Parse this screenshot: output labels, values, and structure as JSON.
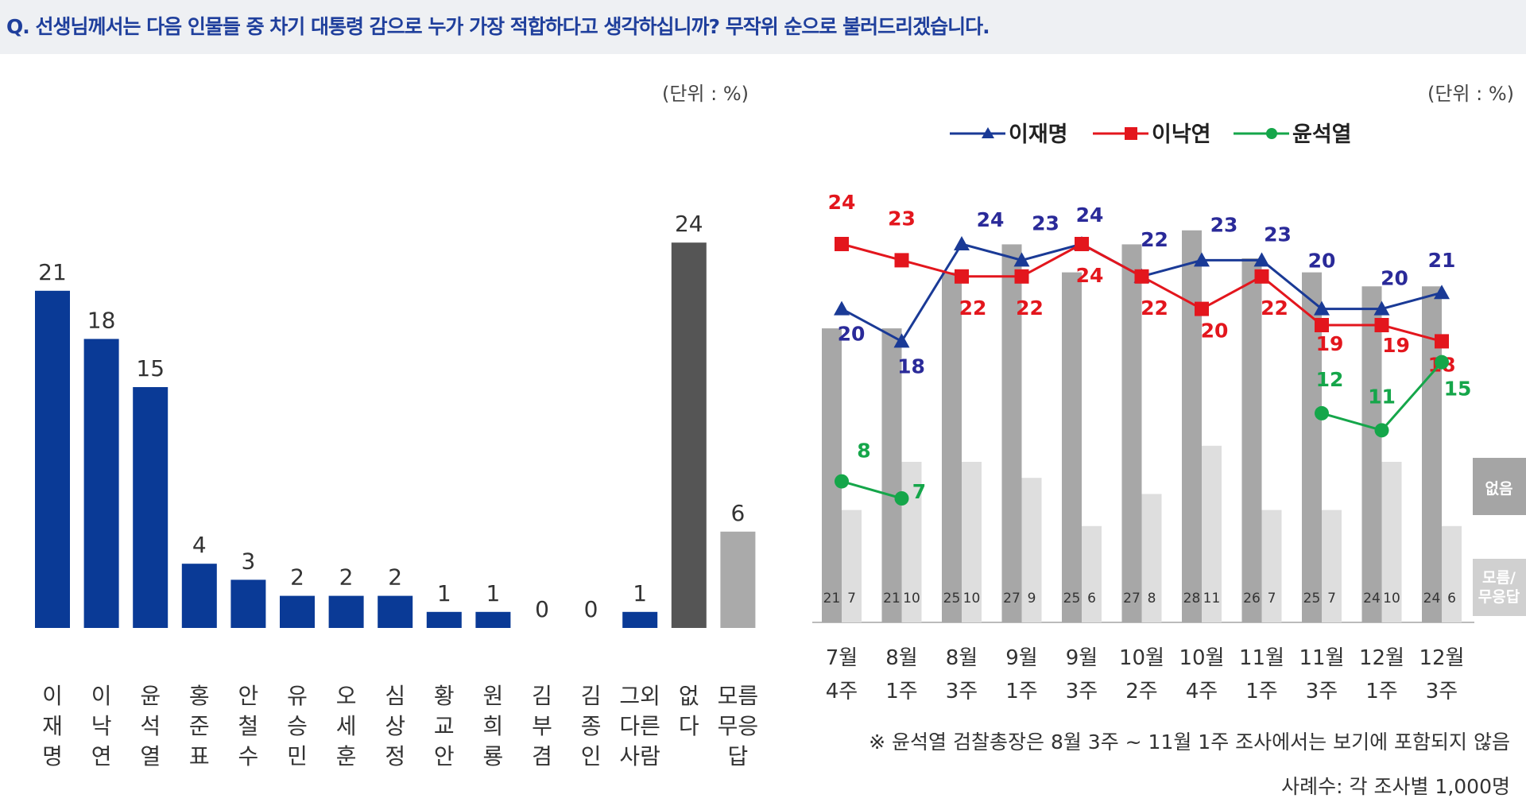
{
  "header": {
    "question": "Q. 선생님께서는 다음 인물들 중 차기 대통령 감으로 누가 가장 적합하다고 생각하십니까? 무작위 순으로 불러드리겠습니다."
  },
  "colors": {
    "blue_bar": "#0a3a96",
    "dark_bar": "#555555",
    "light_bar": "#aaaaaa",
    "gray_bar": "#a7a7a7",
    "lightgray_bar": "#dedede",
    "line_lee_jm": "#1a3a96",
    "line_lee_ny": "#e3161d",
    "line_yoon": "#15a64a",
    "label_lee_jm": "#2a2a99"
  },
  "chart_data": [
    {
      "type": "bar",
      "unit_label": "(단위 : %)",
      "categories": [
        "이\n재\n명",
        "이\n낙\n연",
        "윤\n석\n열",
        "홍\n준\n표",
        "안\n철\n수",
        "유\n승\n민",
        "오\n세\n훈",
        "심\n상\n정",
        "황\n교\n안",
        "원\n희\n룡",
        "김\n부\n겸",
        "김\n종\n인",
        "그외\n다른\n사람",
        "없\n다",
        "모름\n무응\n답"
      ],
      "values": [
        21,
        18,
        15,
        4,
        3,
        2,
        2,
        2,
        1,
        1,
        0,
        0,
        1,
        24,
        6
      ],
      "value_labels": [
        "21",
        "18",
        "15",
        "4",
        "3",
        "2",
        "2",
        "2",
        "1",
        "1",
        "0",
        "0",
        "1",
        "24",
        "6"
      ],
      "ylim": [
        0,
        28
      ]
    },
    {
      "type": "line",
      "unit_label": "(단위 : %)",
      "x": [
        "7월\n4주",
        "8월\n1주",
        "8월\n3주",
        "9월\n1주",
        "9월\n3주",
        "10월\n2주",
        "10월\n4주",
        "11월\n1주",
        "11월\n3주",
        "12월\n1주",
        "12월\n3주"
      ],
      "series": [
        {
          "name": "이재명",
          "values": [
            20,
            18,
            24,
            23,
            24,
            22,
            23,
            23,
            20,
            20,
            21
          ],
          "labels": [
            "20",
            "18",
            "24",
            "23",
            "24",
            "22",
            "23",
            "23",
            "20",
            "20",
            "21"
          ]
        },
        {
          "name": "이낙연",
          "values": [
            24,
            23,
            22,
            22,
            24,
            22,
            20,
            22,
            19,
            19,
            18
          ],
          "labels": [
            "24",
            "23",
            "22",
            "22",
            "24",
            "22",
            "20",
            "22",
            "19",
            "19",
            "18"
          ]
        },
        {
          "name": "윤석열",
          "values": [
            8,
            7,
            null,
            null,
            null,
            null,
            null,
            null,
            12,
            11,
            15
          ],
          "labels": [
            "8",
            "7",
            "",
            "",
            "",
            "",
            "",
            "",
            "12",
            "11",
            "15"
          ]
        }
      ],
      "bars": [
        {
          "name": "없음",
          "values": [
            21,
            21,
            25,
            27,
            25,
            27,
            28,
            26,
            25,
            24,
            24
          ],
          "labels": [
            "21",
            "21",
            "25",
            "27",
            "25",
            "27",
            "28",
            "26",
            "25",
            "24",
            "24"
          ]
        },
        {
          "name": "모름/무응답",
          "values": [
            7,
            10,
            10,
            9,
            6,
            8,
            11,
            7,
            7,
            10,
            6
          ],
          "labels": [
            "7",
            "10",
            "10",
            "9",
            "6",
            "8",
            "11",
            "7",
            "7",
            "10",
            "6"
          ]
        }
      ],
      "side_labels": [
        "없음",
        "모름/\n무응답"
      ],
      "note": "※ 윤석열 검찰총장은 8월 3주 ~ 11월 1주 조사에서는 보기에 포함되지 않음",
      "sample": "사례수: 각 조사별 1,000명"
    }
  ]
}
